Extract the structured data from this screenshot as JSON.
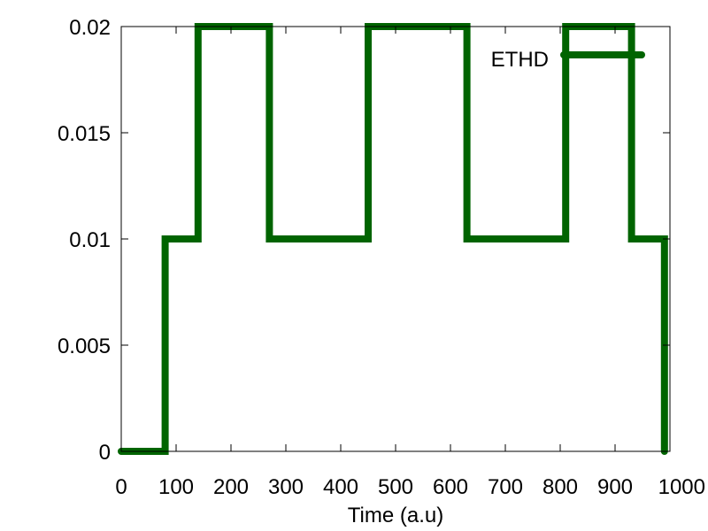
{
  "chart_data": {
    "type": "line",
    "xlabel": "Time (a.u)",
    "ylabel": "",
    "xlim": [
      0,
      1000
    ],
    "ylim": [
      0,
      0.02
    ],
    "x_ticks": [
      {
        "value": 0,
        "label": "0"
      },
      {
        "value": 100,
        "label": "100"
      },
      {
        "value": 200,
        "label": "200"
      },
      {
        "value": 300,
        "label": "300"
      },
      {
        "value": 400,
        "label": "400"
      },
      {
        "value": 500,
        "label": "500"
      },
      {
        "value": 600,
        "label": "600"
      },
      {
        "value": 700,
        "label": "700"
      },
      {
        "value": 800,
        "label": "800"
      },
      {
        "value": 900,
        "label": "900"
      },
      {
        "value": 1000,
        "label": "1000"
      }
    ],
    "y_ticks": [
      {
        "value": 0,
        "label": "0"
      },
      {
        "value": 0.005,
        "label": "0.005"
      },
      {
        "value": 0.01,
        "label": "0.01"
      },
      {
        "value": 0.015,
        "label": "0.015"
      },
      {
        "value": 0.02,
        "label": "0.02"
      }
    ],
    "grid": false,
    "legend": {
      "position": "top-right"
    },
    "series": [
      {
        "name": "ETHD",
        "color": "#006400",
        "style": "step",
        "x": [
          0,
          80,
          80,
          140,
          140,
          270,
          270,
          450,
          450,
          630,
          630,
          810,
          810,
          930,
          930,
          990,
          990
        ],
        "y": [
          0,
          0,
          0.01,
          0.01,
          0.02,
          0.02,
          0.01,
          0.01,
          0.02,
          0.02,
          0.01,
          0.01,
          0.02,
          0.02,
          0.01,
          0.01,
          0
        ]
      }
    ]
  }
}
